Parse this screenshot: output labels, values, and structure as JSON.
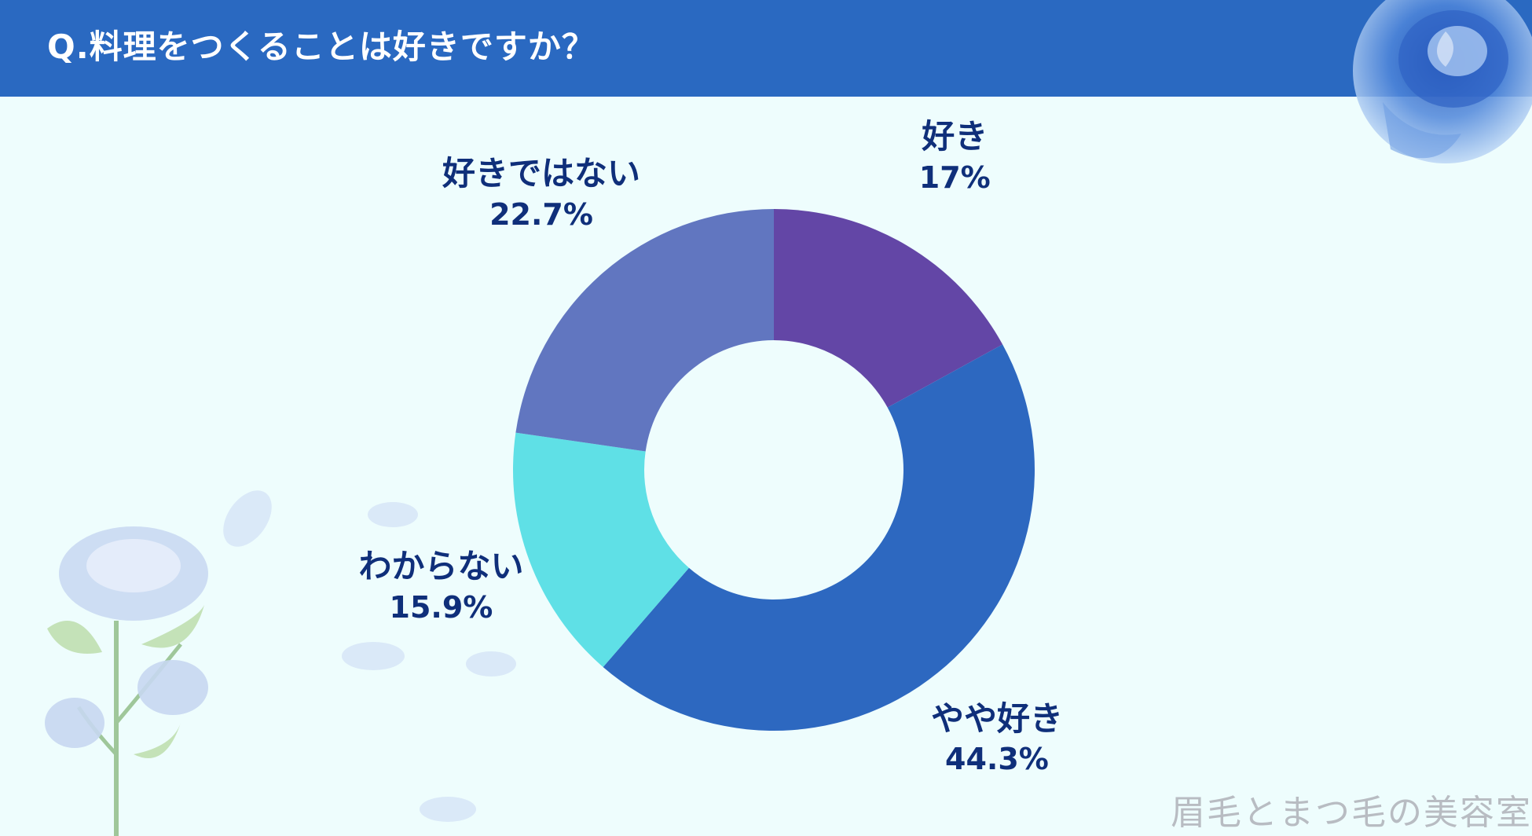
{
  "header": {
    "title": "Q.料理をつくることは好きですか？"
  },
  "colors": {
    "header_bg": "#2a69c1",
    "background": "#eefdfd",
    "label_text": "#0f2f7a"
  },
  "chart_data": {
    "type": "pie",
    "style": "donut",
    "start": "top",
    "direction": "clockwise",
    "slices": [
      {
        "label": "好き",
        "value": 17,
        "value_label": "17%",
        "color": "#6346a6"
      },
      {
        "label": "やや好き",
        "value": 44.3,
        "value_label": "44.3%",
        "color": "#2d68c0"
      },
      {
        "label": "わからない",
        "value": 15.9,
        "value_label": "15.9%",
        "color": "#5fe0e6"
      },
      {
        "label": "好きではない",
        "value": 22.7,
        "value_label": "22.7%",
        "color": "#6176c0"
      }
    ]
  },
  "watermark": "眉毛とまつ毛の美容室"
}
